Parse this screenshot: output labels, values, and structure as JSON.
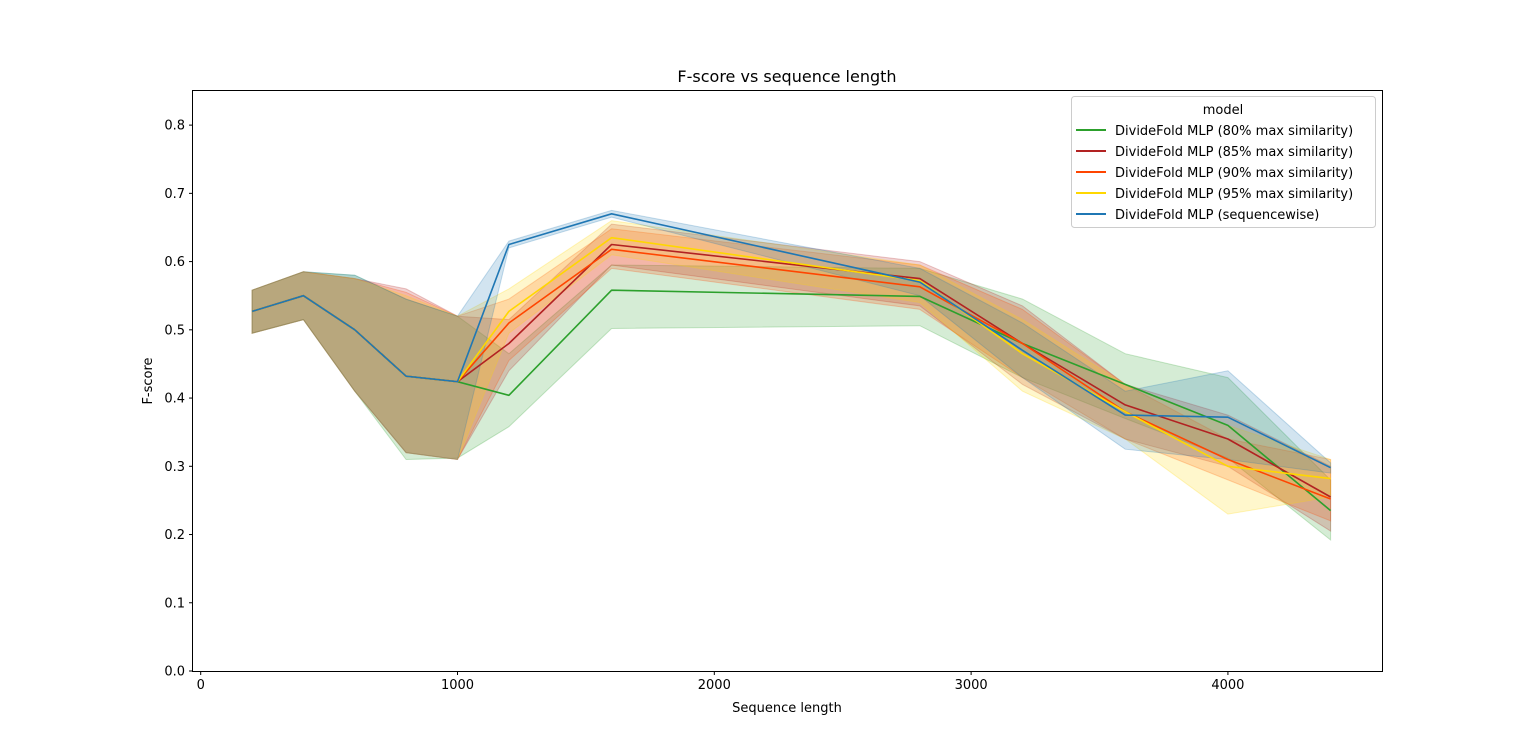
{
  "chart_data": {
    "type": "line",
    "title": "F-score vs sequence length",
    "xlabel": "Sequence length",
    "ylabel": "F-score",
    "xlim": [
      -30,
      4600
    ],
    "ylim": [
      0,
      0.85
    ],
    "xticks": [
      0,
      1000,
      2000,
      3000,
      4000
    ],
    "xtick_labels": [
      "0",
      "1000",
      "2000",
      "3000",
      "4000"
    ],
    "yticks": [
      0.0,
      0.1,
      0.2,
      0.3,
      0.4,
      0.5,
      0.6,
      0.7,
      0.8
    ],
    "ytick_labels": [
      "0.0",
      "0.1",
      "0.2",
      "0.3",
      "0.4",
      "0.5",
      "0.6",
      "0.7",
      "0.8"
    ],
    "grid": false,
    "legend": {
      "title": "model",
      "position": "top-right"
    },
    "x": [
      200,
      400,
      600,
      800,
      1000,
      1200,
      1600,
      2800,
      3200,
      3600,
      4000,
      4400
    ],
    "series": [
      {
        "name": "DivideFold MLP (80% max similarity)",
        "color": "#2ca02c",
        "values": [
          0.527,
          0.55,
          0.5,
          0.432,
          0.424,
          0.404,
          0.558,
          0.549,
          0.48,
          0.42,
          0.36,
          0.235
        ],
        "ci_low": [
          0.495,
          0.515,
          0.41,
          0.31,
          0.312,
          0.358,
          0.502,
          0.506,
          0.43,
          0.37,
          0.312,
          0.192
        ],
        "ci_high": [
          0.558,
          0.585,
          0.58,
          0.545,
          0.52,
          0.465,
          0.595,
          0.59,
          0.545,
          0.465,
          0.43,
          0.28
        ]
      },
      {
        "name": "DivideFold MLP (85% max similarity)",
        "color": "#b22222",
        "values": [
          0.527,
          0.55,
          0.5,
          0.432,
          0.424,
          0.48,
          0.625,
          0.575,
          0.48,
          0.39,
          0.34,
          0.255
        ],
        "ci_low": [
          0.495,
          0.515,
          0.41,
          0.32,
          0.31,
          0.44,
          0.595,
          0.535,
          0.42,
          0.34,
          0.3,
          0.205
        ],
        "ci_high": [
          0.558,
          0.585,
          0.575,
          0.56,
          0.52,
          0.515,
          0.655,
          0.6,
          0.535,
          0.42,
          0.375,
          0.3
        ]
      },
      {
        "name": "DivideFold MLP (90% max similarity)",
        "color": "#ff4500",
        "values": [
          0.527,
          0.55,
          0.5,
          0.432,
          0.424,
          0.51,
          0.618,
          0.563,
          0.48,
          0.38,
          0.31,
          0.252
        ],
        "ci_low": [
          0.495,
          0.515,
          0.41,
          0.32,
          0.31,
          0.455,
          0.59,
          0.53,
          0.43,
          0.34,
          0.28,
          0.22
        ],
        "ci_high": [
          0.558,
          0.585,
          0.575,
          0.555,
          0.52,
          0.545,
          0.648,
          0.595,
          0.53,
          0.42,
          0.34,
          0.31
        ]
      },
      {
        "name": "DivideFold MLP (95% max similarity)",
        "color": "#ffd700",
        "values": [
          0.527,
          0.55,
          0.5,
          0.432,
          0.424,
          0.527,
          0.635,
          0.572,
          0.465,
          0.38,
          0.3,
          0.282
        ],
        "ci_low": [
          0.495,
          0.515,
          0.41,
          0.32,
          0.31,
          0.495,
          0.61,
          0.54,
          0.41,
          0.34,
          0.23,
          0.255
        ],
        "ci_high": [
          0.558,
          0.585,
          0.575,
          0.55,
          0.52,
          0.56,
          0.66,
          0.595,
          0.515,
          0.42,
          0.36,
          0.31
        ]
      },
      {
        "name": "DivideFold MLP (sequencewise)",
        "color": "#1f77b4",
        "values": [
          0.527,
          0.55,
          0.5,
          0.432,
          0.424,
          0.625,
          0.67,
          0.57,
          0.47,
          0.375,
          0.372,
          0.298
        ],
        "ci_low": [
          0.495,
          0.515,
          0.41,
          0.32,
          0.31,
          0.62,
          0.665,
          0.55,
          0.43,
          0.325,
          0.31,
          0.29
        ],
        "ci_high": [
          0.558,
          0.585,
          0.58,
          0.545,
          0.52,
          0.63,
          0.675,
          0.59,
          0.51,
          0.41,
          0.44,
          0.305
        ]
      }
    ]
  }
}
